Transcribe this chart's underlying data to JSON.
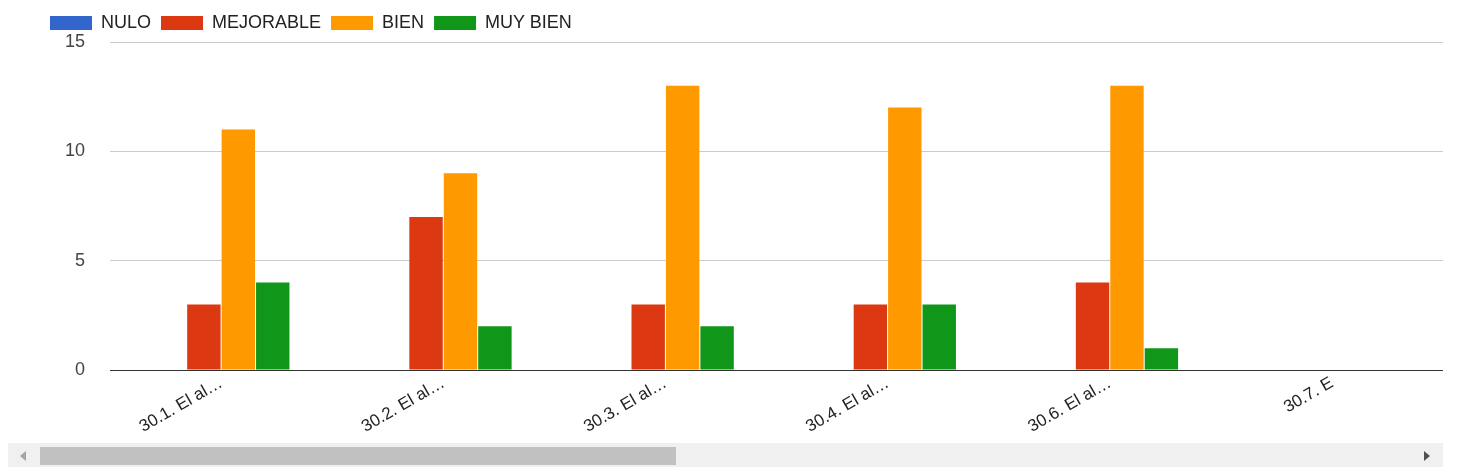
{
  "chart_data": {
    "type": "bar",
    "categories": [
      "30.1. El al…",
      "30.2. El al…",
      "30.3. El al…",
      "30.4. El al…",
      "30.6. El al…",
      "30.7. E"
    ],
    "series": [
      {
        "name": "NULO",
        "color": "#3366cc",
        "values": [
          0,
          0,
          0,
          0,
          0,
          null
        ]
      },
      {
        "name": "MEJORABLE",
        "color": "#dc3912",
        "values": [
          3,
          7,
          3,
          3,
          4,
          null
        ]
      },
      {
        "name": "BIEN",
        "color": "#ff9900",
        "values": [
          11,
          9,
          13,
          12,
          13,
          null
        ]
      },
      {
        "name": "MUY BIEN",
        "color": "#109618",
        "values": [
          4,
          2,
          2,
          3,
          1,
          null
        ]
      }
    ],
    "ylim": [
      0,
      15
    ],
    "yticks": [
      0,
      5,
      10,
      15
    ],
    "grid": "y",
    "legend": "top left"
  }
}
